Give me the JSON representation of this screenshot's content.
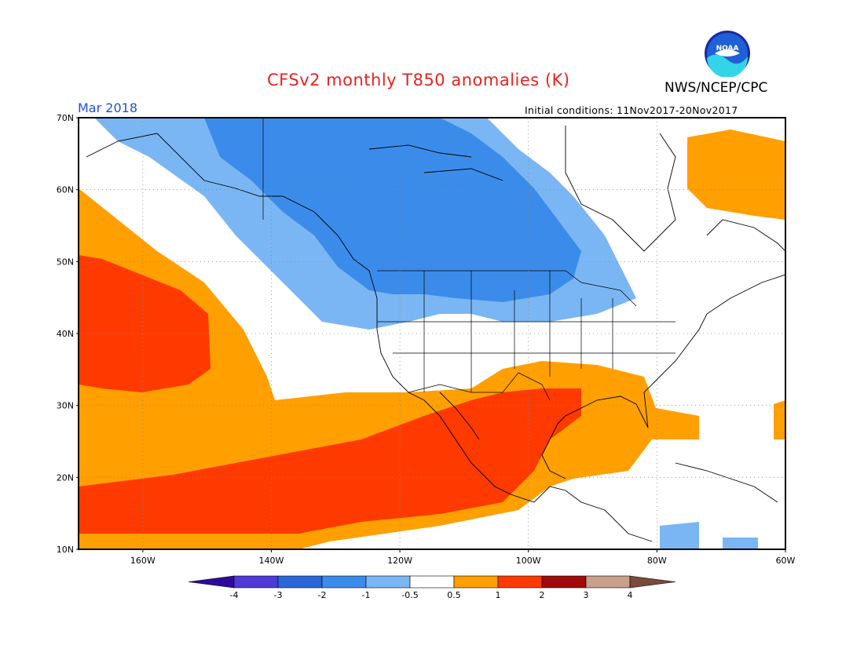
{
  "header": {
    "title": "CFSv2 monthly T850 anomalies (K)",
    "agency": "NWS/NCEP/CPC",
    "logo_text": "NOAA",
    "period": "Mar 2018",
    "initial_conditions": "Initial conditions: 11Nov2017-20Nov2017"
  },
  "map": {
    "lat_labels": [
      "70N",
      "60N",
      "50N",
      "40N",
      "30N",
      "20N",
      "10N"
    ],
    "lon_labels": [
      "160W",
      "140W",
      "120W",
      "100W",
      "80W",
      "60W"
    ],
    "extent": {
      "lon_min": -170,
      "lon_max": -60,
      "lat_min": 10,
      "lat_max": 70
    }
  },
  "colorbar": {
    "tick_labels": [
      "-4",
      "-3",
      "-2",
      "-1",
      "-0.5",
      "0.5",
      "1",
      "2",
      "3",
      "4"
    ],
    "colors": [
      "#2e0a9e",
      "#4f3ad6",
      "#2a66d8",
      "#3b8cea",
      "#7ab6f4",
      "#ffffff",
      "#ffa000",
      "#ff3a00",
      "#a00a0a",
      "#c8a08c",
      "#7a4a3a"
    ]
  }
}
